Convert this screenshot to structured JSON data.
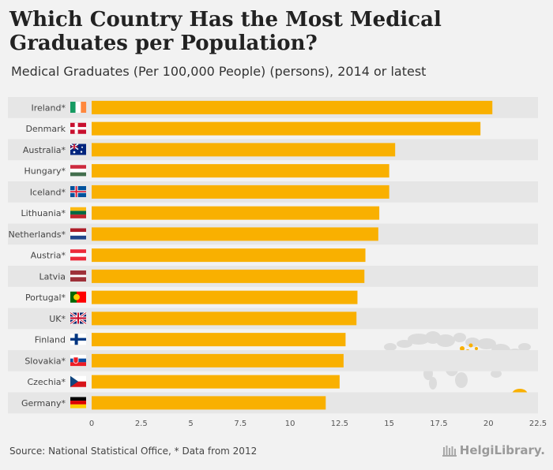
{
  "header": {
    "title": "Which Country Has the Most Medical Graduates per Population?",
    "subtitle": "Medical Graduates (Per 100,000 People) (persons), 2014 or latest"
  },
  "footer": {
    "source": "Source: National Statistical Office, * Data from 2012",
    "brand": "HelgiLibrary."
  },
  "colors": {
    "bar": "#f9b000",
    "stripe": "#e6e6e6",
    "axis_text": "#555555"
  },
  "chart_data": {
    "type": "bar",
    "orientation": "horizontal",
    "title": "Which Country Has the Most Medical Graduates per Population?",
    "subtitle": "Medical Graduates (Per 100,000 People) (persons), 2014 or latest",
    "xlim": [
      0,
      22.5
    ],
    "xticks": [
      "0",
      "2.5",
      "5",
      "7.5",
      "10",
      "12.5",
      "15",
      "17.5",
      "20",
      "22.5"
    ],
    "categories": [
      "Ireland*",
      "Denmark",
      "Australia*",
      "Hungary*",
      "Iceland*",
      "Lithuania*",
      "Netherlands*",
      "Austria*",
      "Latvia",
      "Portugal*",
      "UK*",
      "Finland",
      "Slovakia*",
      "Czechia*",
      "Germany*"
    ],
    "flags": [
      "ireland-flag",
      "denmark-flag",
      "australia-flag",
      "hungary-flag",
      "iceland-flag",
      "lithuania-flag",
      "netherlands-flag",
      "austria-flag",
      "latvia-flag",
      "portugal-flag",
      "uk-flag",
      "finland-flag",
      "slovakia-flag",
      "czechia-flag",
      "germany-flag"
    ],
    "values": [
      20.2,
      19.6,
      15.3,
      15.0,
      15.0,
      14.5,
      14.45,
      13.8,
      13.75,
      13.4,
      13.35,
      12.8,
      12.7,
      12.5,
      11.8
    ]
  }
}
